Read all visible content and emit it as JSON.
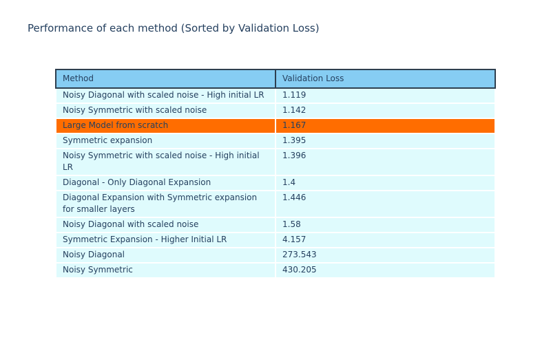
{
  "title": "Performance of each method (Sorted by Validation Loss)",
  "colors": {
    "page_bg": "#ffffff",
    "text": "#25405f",
    "header_bg": "#86cdf3",
    "header_border": "#2e3f4f",
    "row_bg": "#dffbfd",
    "highlight_bg": "#ff6d00"
  },
  "table": {
    "columns": [
      "Method",
      "Validation Loss"
    ],
    "rows": [
      {
        "method": "Noisy Diagonal with scaled noise - High initial LR",
        "loss": "1.119",
        "highlight": false
      },
      {
        "method": "Noisy Symmetric with scaled noise",
        "loss": "1.142",
        "highlight": false
      },
      {
        "method": "Large Model from scratch",
        "loss": "1.167",
        "highlight": true
      },
      {
        "method": "Symmetric expansion",
        "loss": "1.395",
        "highlight": false
      },
      {
        "method": "Noisy Symmetric with scaled noise - High initial LR",
        "loss": "1.396",
        "highlight": false
      },
      {
        "method": "Diagonal - Only Diagonal Expansion",
        "loss": "1.4",
        "highlight": false
      },
      {
        "method": "Diagonal Expansion with Symmetric expansion for smaller layers",
        "loss": "1.446",
        "highlight": false
      },
      {
        "method": "Noisy Diagonal with scaled noise",
        "loss": "1.58",
        "highlight": false
      },
      {
        "method": "Symmetric Expansion - Higher Initial LR",
        "loss": "4.157",
        "highlight": false
      },
      {
        "method": "Noisy Diagonal",
        "loss": "273.543",
        "highlight": false
      },
      {
        "method": "Noisy Symmetric",
        "loss": "430.205",
        "highlight": false
      }
    ]
  },
  "chart_data": {
    "type": "table",
    "title": "Performance of each method (Sorted by Validation Loss)",
    "columns": [
      "Method",
      "Validation Loss"
    ],
    "rows": [
      [
        "Noisy Diagonal with scaled noise - High initial LR",
        1.119
      ],
      [
        "Noisy Symmetric with scaled noise",
        1.142
      ],
      [
        "Large Model from scratch",
        1.167
      ],
      [
        "Symmetric expansion",
        1.395
      ],
      [
        "Noisy Symmetric with scaled noise - High initial LR",
        1.396
      ],
      [
        "Diagonal - Only Diagonal Expansion",
        1.4
      ],
      [
        "Diagonal Expansion with Symmetric expansion for smaller layers",
        1.446
      ],
      [
        "Noisy Diagonal with scaled noise",
        1.58
      ],
      [
        "Symmetric Expansion - Higher Initial LR",
        4.157
      ],
      [
        "Noisy Diagonal",
        273.543
      ],
      [
        "Noisy Symmetric",
        430.205
      ]
    ],
    "sorted_by": "Validation Loss",
    "highlighted_row": "Large Model from scratch",
    "layout_hints": {
      "header_fill": "#86cdf3",
      "cell_fill": "#dffbfd",
      "highlight_fill": "#ff6d00",
      "column_widths": [
        "50%",
        "50%"
      ]
    }
  }
}
